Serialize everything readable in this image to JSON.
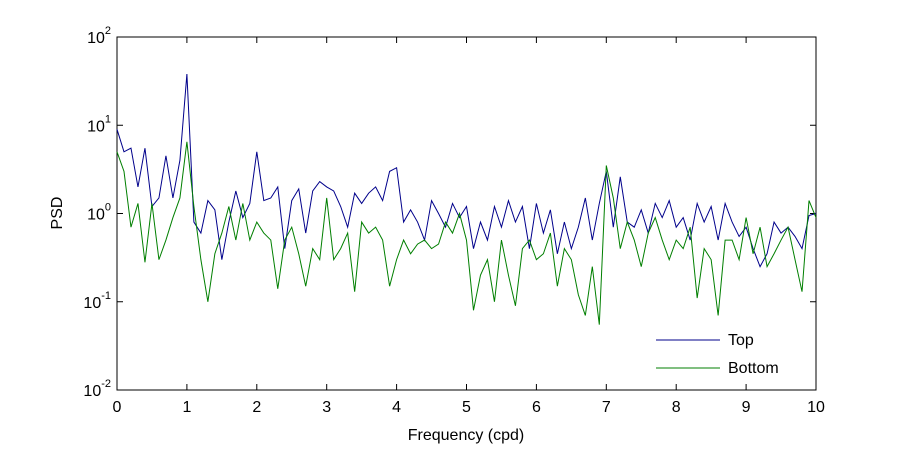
{
  "chart_data": {
    "type": "line",
    "x_label": "Frequency (cpd)",
    "y_label": "PSD",
    "y_scale": "log",
    "legend": "lower right",
    "grid": false,
    "xlim": [
      0,
      10
    ],
    "xticks": [
      0,
      1,
      2,
      3,
      4,
      5,
      6,
      7,
      8,
      9,
      10
    ],
    "ylim": [
      0.01,
      100
    ],
    "yticks": [
      {
        "value": 0.01,
        "label": "10^-2"
      },
      {
        "value": 0.1,
        "label": "10^-1"
      },
      {
        "value": 1,
        "label": "10^0"
      },
      {
        "value": 10,
        "label": "10^1"
      },
      {
        "value": 100,
        "label": "10^2"
      }
    ],
    "x": [
      0,
      0.1,
      0.2,
      0.3,
      0.4,
      0.5,
      0.6,
      0.7,
      0.8,
      0.9,
      1,
      1.1,
      1.2,
      1.3,
      1.4,
      1.5,
      1.6,
      1.7,
      1.8,
      1.9,
      2,
      2.1,
      2.2,
      2.3,
      2.4,
      2.5,
      2.6,
      2.7,
      2.8,
      2.9,
      3,
      3.1,
      3.2,
      3.3,
      3.4,
      3.5,
      3.6,
      3.7,
      3.8,
      3.9,
      4,
      4.1,
      4.2,
      4.3,
      4.4,
      4.5,
      4.6,
      4.7,
      4.8,
      4.9,
      5,
      5.1,
      5.2,
      5.3,
      5.4,
      5.5,
      5.6,
      5.7,
      5.8,
      5.9,
      6,
      6.1,
      6.2,
      6.3,
      6.4,
      6.5,
      6.6,
      6.7,
      6.8,
      6.9,
      7,
      7.1,
      7.2,
      7.3,
      7.4,
      7.5,
      7.6,
      7.7,
      7.8,
      7.9,
      8,
      8.1,
      8.2,
      8.3,
      8.4,
      8.5,
      8.6,
      8.7,
      8.8,
      8.9,
      9,
      9.1,
      9.2,
      9.3,
      9.4,
      9.5,
      9.6,
      9.7,
      9.8,
      9.9,
      10
    ],
    "series": [
      {
        "name": "Top",
        "color": "#00008b",
        "values": [
          9,
          5,
          5.5,
          2,
          5.5,
          1.2,
          1.5,
          4.5,
          1.5,
          4,
          38,
          0.8,
          0.6,
          1.4,
          1.1,
          0.3,
          0.8,
          1.8,
          0.9,
          1.3,
          5,
          1.4,
          1.5,
          2,
          0.4,
          1.4,
          1.9,
          0.6,
          1.8,
          2.3,
          2,
          1.8,
          1.2,
          0.7,
          1.7,
          1.3,
          1.7,
          2,
          1.4,
          3,
          3.3,
          0.8,
          1.1,
          0.8,
          0.5,
          1.4,
          1,
          0.7,
          1.3,
          0.9,
          1.2,
          0.4,
          0.8,
          0.5,
          1.2,
          0.7,
          1.4,
          0.8,
          1.2,
          0.4,
          1.3,
          0.6,
          1.1,
          0.35,
          0.8,
          0.4,
          0.7,
          1.5,
          0.5,
          1.3,
          3,
          0.7,
          2.6,
          0.8,
          0.7,
          1.1,
          0.6,
          1.3,
          0.9,
          1.4,
          0.7,
          0.9,
          0.5,
          1.3,
          0.8,
          1.2,
          0.5,
          1.3,
          0.8,
          0.55,
          0.7,
          0.4,
          0.25,
          0.35,
          0.8,
          0.6,
          0.7,
          0.55,
          0.4,
          0.95,
          1
        ]
      },
      {
        "name": "Bottom",
        "color": "#007f00",
        "values": [
          5,
          3,
          0.7,
          1.3,
          0.28,
          1.3,
          0.3,
          0.5,
          0.9,
          1.5,
          6.5,
          1.2,
          0.3,
          0.1,
          0.35,
          0.6,
          1.2,
          0.5,
          1.3,
          0.5,
          0.8,
          0.6,
          0.5,
          0.14,
          0.5,
          0.7,
          0.35,
          0.15,
          0.4,
          0.3,
          1.5,
          0.3,
          0.4,
          0.6,
          0.13,
          0.8,
          0.6,
          0.7,
          0.5,
          0.15,
          0.3,
          0.5,
          0.35,
          0.45,
          0.5,
          0.4,
          0.45,
          0.8,
          0.6,
          1,
          0.5,
          0.08,
          0.2,
          0.3,
          0.1,
          0.5,
          0.2,
          0.09,
          0.4,
          0.5,
          0.3,
          0.35,
          0.6,
          0.15,
          0.4,
          0.3,
          0.12,
          0.07,
          0.25,
          0.055,
          3.5,
          1.5,
          0.4,
          0.8,
          0.5,
          0.25,
          0.6,
          0.9,
          0.5,
          0.3,
          0.5,
          0.4,
          0.7,
          0.11,
          0.4,
          0.3,
          0.07,
          0.5,
          0.5,
          0.3,
          0.9,
          0.35,
          0.7,
          0.25,
          0.35,
          0.5,
          0.7,
          0.3,
          0.13,
          1.4,
          0.9
        ]
      }
    ]
  }
}
